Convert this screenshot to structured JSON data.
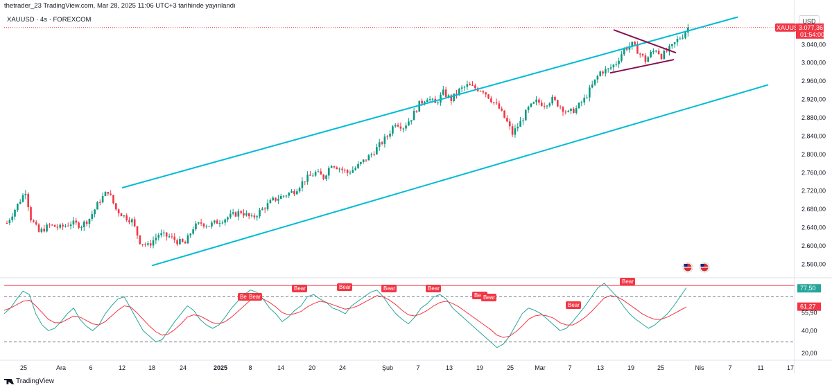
{
  "header": {
    "published": "thetrader_23 TradingView.com, Mar 28, 2025 11:06 UTC+3 tarihinde yayınlandı",
    "symbol_line": "XAUUSD · 4s · FOREXCOM",
    "currency": "USD",
    "brand": "TradingView"
  },
  "colors": {
    "up": "#089981",
    "down": "#f23645",
    "channel": "#00bcd4",
    "triangle": "#880e4f",
    "rsi": "#26a69a",
    "rsi_ma": "#f23645"
  },
  "icons": [
    "us-flag-icon",
    "us-flag-icon",
    "tradingview-logo-icon"
  ],
  "price_label": {
    "symbol": "XAUUSD",
    "price": "3.077,36",
    "countdown": "01:54:00"
  },
  "chart_data": [
    {
      "type": "candlestick",
      "title": "XAUUSD · 4s · FOREXCOM",
      "xlabel": "",
      "ylabel": "",
      "ylim": [
        2535,
        3110
      ],
      "y_ticks": [
        "2.560,00",
        "2.600,00",
        "2.640,00",
        "2.680,00",
        "2.720,00",
        "2.760,00",
        "2.800,00",
        "2.840,00",
        "2.880,00",
        "2.920,00",
        "2.960,00",
        "3.000,00",
        "3.040,00"
      ],
      "y_tick_values": [
        2560,
        2600,
        2640,
        2680,
        2720,
        2760,
        2800,
        2840,
        2880,
        2920,
        2960,
        3000,
        3040
      ],
      "x_ticks": [
        "25",
        "Ara",
        "6",
        "12",
        "18",
        "24",
        "2025",
        "8",
        "14",
        "20",
        "24",
        "Şub",
        "7",
        "13",
        "19",
        "25",
        "Mar",
        "7",
        "13",
        "19",
        "25",
        "Nis",
        "7",
        "11",
        "17"
      ],
      "close_path": [
        [
          0,
          2650
        ],
        [
          4,
          2690
        ],
        [
          7,
          2720
        ],
        [
          9,
          2660
        ],
        [
          12,
          2630
        ],
        [
          16,
          2645
        ],
        [
          20,
          2640
        ],
        [
          24,
          2650
        ],
        [
          28,
          2645
        ],
        [
          31,
          2660
        ],
        [
          35,
          2700
        ],
        [
          38,
          2720
        ],
        [
          41,
          2680
        ],
        [
          44,
          2665
        ],
        [
          47,
          2655
        ],
        [
          50,
          2610
        ],
        [
          53,
          2600
        ],
        [
          57,
          2625
        ],
        [
          61,
          2620
        ],
        [
          64,
          2610
        ],
        [
          67,
          2605
        ],
        [
          70,
          2640
        ],
        [
          73,
          2650
        ],
        [
          76,
          2645
        ],
        [
          80,
          2655
        ],
        [
          84,
          2665
        ],
        [
          88,
          2675
        ],
        [
          92,
          2660
        ],
        [
          96,
          2680
        ],
        [
          100,
          2700
        ],
        [
          104,
          2710
        ],
        [
          108,
          2720
        ],
        [
          112,
          2745
        ],
        [
          116,
          2760
        ],
        [
          119,
          2750
        ],
        [
          122,
          2780
        ],
        [
          125,
          2770
        ],
        [
          128,
          2760
        ],
        [
          131,
          2770
        ],
        [
          134,
          2785
        ],
        [
          137,
          2800
        ],
        [
          140,
          2820
        ],
        [
          143,
          2840
        ],
        [
          146,
          2870
        ],
        [
          149,
          2860
        ],
        [
          152,
          2880
        ],
        [
          155,
          2910
        ],
        [
          158,
          2925
        ],
        [
          161,
          2910
        ],
        [
          164,
          2935
        ],
        [
          167,
          2920
        ],
        [
          170,
          2940
        ],
        [
          173,
          2950
        ],
        [
          176,
          2945
        ],
        [
          179,
          2940
        ],
        [
          182,
          2920
        ],
        [
          185,
          2900
        ],
        [
          188,
          2870
        ],
        [
          190,
          2845
        ],
        [
          193,
          2870
        ],
        [
          196,
          2900
        ],
        [
          199,
          2915
        ],
        [
          202,
          2910
        ],
        [
          205,
          2920
        ],
        [
          208,
          2905
        ],
        [
          211,
          2890
        ],
        [
          214,
          2900
        ],
        [
          217,
          2920
        ],
        [
          220,
          2950
        ],
        [
          223,
          2980
        ],
        [
          226,
          2985
        ],
        [
          229,
          3000
        ],
        [
          232,
          3030
        ],
        [
          235,
          3040
        ],
        [
          238,
          3020
        ],
        [
          240,
          3005
        ],
        [
          242,
          3020
        ],
        [
          244,
          3030
        ],
        [
          246,
          3015
        ],
        [
          248,
          3025
        ],
        [
          250,
          3035
        ],
        [
          252,
          3050
        ],
        [
          254,
          3060
        ],
        [
          256,
          3077
        ]
      ],
      "channel": {
        "upper": [
          [
            2024.0,
            2730
          ],
          [
            2025.0,
            3085
          ]
        ],
        "lower": [
          [
            2024.0,
            2560
          ],
          [
            2025.0,
            2955
          ]
        ]
      },
      "triangle": {
        "upper": [
          3075,
          3030
        ],
        "lower": [
          2985,
          3010
        ]
      }
    },
    {
      "type": "line",
      "title": "",
      "ylim": [
        15,
        85
      ],
      "y_ticks": [
        "77,50",
        "61,27",
        "55,90",
        "40,00",
        "20,00"
      ],
      "y_tick_values": [
        77.5,
        61.27,
        55.9,
        40,
        20
      ],
      "dashed_levels": [
        70,
        30
      ],
      "red_level": 80,
      "series": [
        {
          "name": "",
          "color": "#26a69a",
          "values": [
            55,
            60,
            68,
            75,
            72,
            55,
            45,
            40,
            42,
            48,
            55,
            60,
            50,
            44,
            40,
            45,
            55,
            62,
            68,
            70,
            60,
            50,
            40,
            35,
            30,
            32,
            40,
            48,
            55,
            62,
            58,
            50,
            45,
            42,
            45,
            52,
            60,
            66,
            72,
            76,
            74,
            68,
            60,
            55,
            48,
            52,
            58,
            62,
            70,
            72,
            68,
            65,
            60,
            58,
            55,
            62,
            66,
            70,
            74,
            76,
            70,
            62,
            55,
            50,
            46,
            52,
            60,
            64,
            70,
            72,
            68,
            60,
            55,
            50,
            45,
            40,
            35,
            30,
            25,
            28,
            35,
            45,
            55,
            60,
            58,
            55,
            50,
            45,
            40,
            42,
            48,
            55,
            62,
            70,
            78,
            82,
            76,
            70,
            62,
            55,
            50,
            46,
            42,
            45,
            50,
            55,
            62,
            70,
            78
          ]
        },
        {
          "name": "",
          "color": "#f23645",
          "values": [
            58,
            60,
            63,
            66,
            67,
            62,
            56,
            50,
            47,
            47,
            50,
            53,
            52,
            49,
            46,
            45,
            48,
            53,
            58,
            62,
            61,
            56,
            50,
            44,
            39,
            36,
            37,
            41,
            46,
            52,
            54,
            53,
            50,
            47,
            46,
            48,
            52,
            57,
            62,
            67,
            69,
            68,
            65,
            61,
            56,
            54,
            55,
            57,
            61,
            64,
            66,
            65,
            63,
            61,
            59,
            60,
            62,
            65,
            68,
            71,
            70,
            67,
            63,
            58,
            54,
            53,
            55,
            58,
            62,
            65,
            66,
            64,
            61,
            57,
            53,
            49,
            45,
            41,
            36,
            34,
            35,
            39,
            44,
            50,
            53,
            54,
            53,
            51,
            47,
            45,
            45,
            48,
            52,
            57,
            63,
            69,
            71,
            70,
            67,
            63,
            59,
            55,
            52,
            50,
            50,
            52,
            55,
            58,
            61
          ]
        }
      ],
      "bear_labels": [
        "Bear",
        "Bear",
        "Bear",
        "Bear",
        "Bear",
        "Bear",
        "Bear",
        "Bear",
        "Bear",
        "Bear"
      ],
      "value_labels": {
        "rsi": "77,50",
        "ma": "61,27"
      }
    }
  ]
}
